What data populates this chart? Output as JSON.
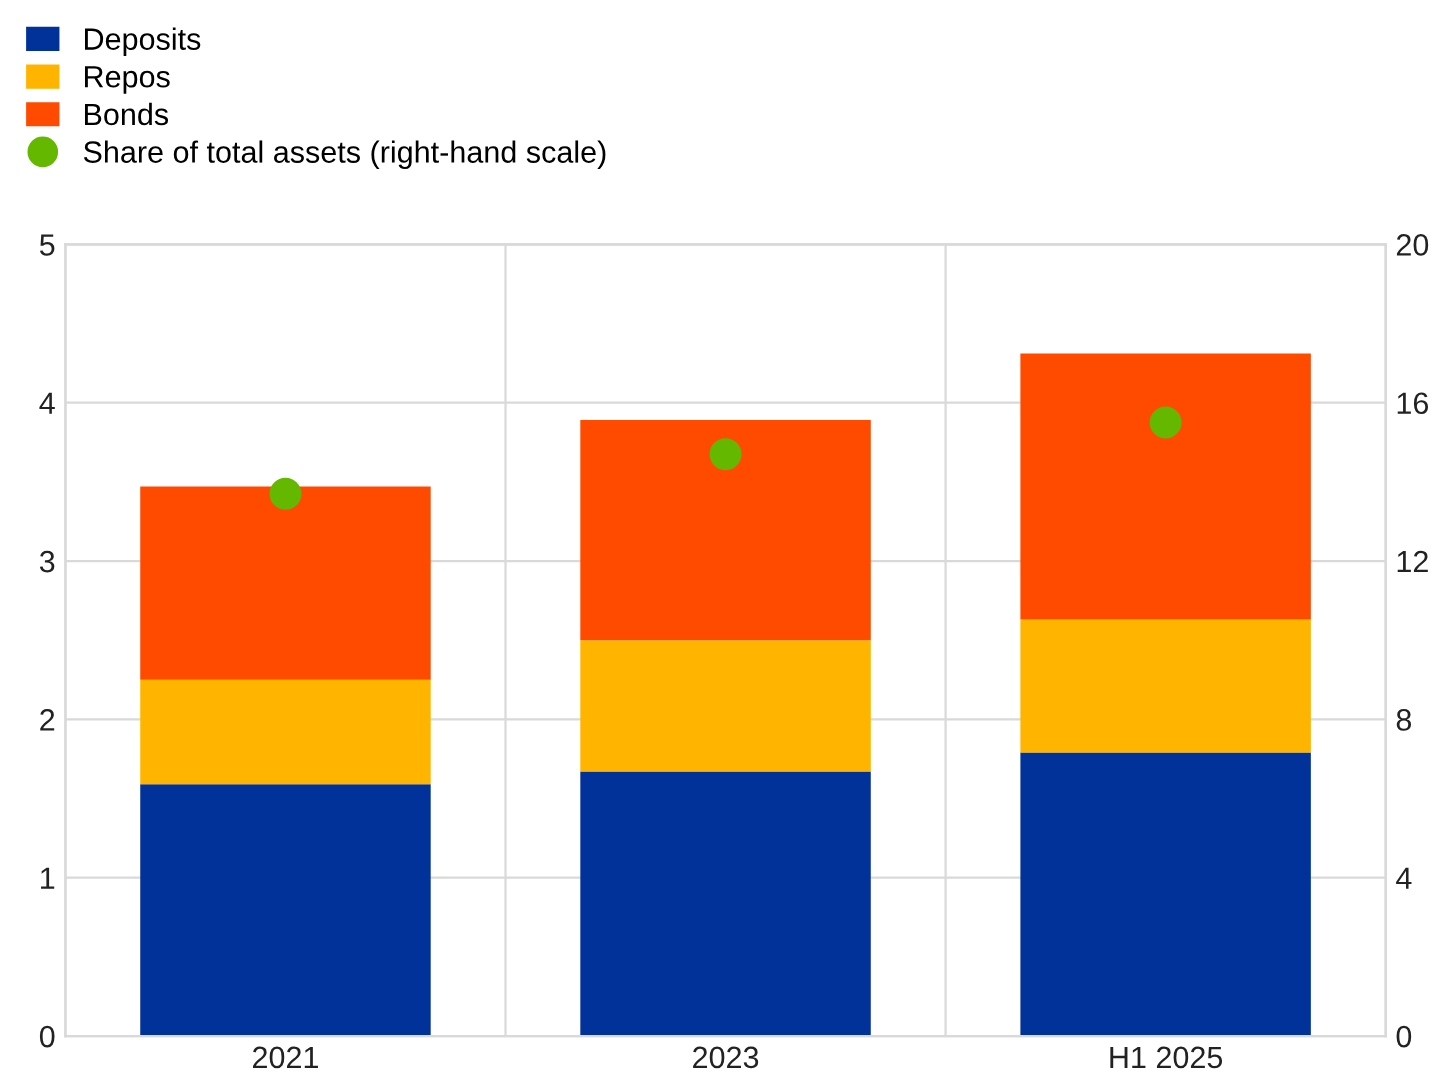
{
  "chart_data": {
    "type": "bar",
    "stacked": true,
    "categories": [
      "2021",
      "2023",
      "H1 2025"
    ],
    "series": [
      {
        "name": "Deposits",
        "color": "#003299",
        "values": [
          1.59,
          1.67,
          1.79
        ]
      },
      {
        "name": "Repos",
        "color": "#ffb400",
        "values": [
          0.66,
          0.83,
          0.84
        ]
      },
      {
        "name": "Bonds",
        "color": "#ff4b00",
        "values": [
          1.22,
          1.39,
          1.68
        ]
      },
      {
        "name": "Share of total assets (right-hand scale)",
        "type": "scatter",
        "axis": "y2",
        "color": "#65b800",
        "values": [
          13.7,
          14.7,
          15.5
        ]
      }
    ],
    "ylim": [
      0,
      5
    ],
    "yticks": [
      0,
      1,
      2,
      3,
      4,
      5
    ],
    "y2lim": [
      0,
      20
    ],
    "y2ticks": [
      0,
      4,
      8,
      12,
      16,
      20
    ],
    "grid": true,
    "legend": "top left",
    "marker": "circle"
  }
}
